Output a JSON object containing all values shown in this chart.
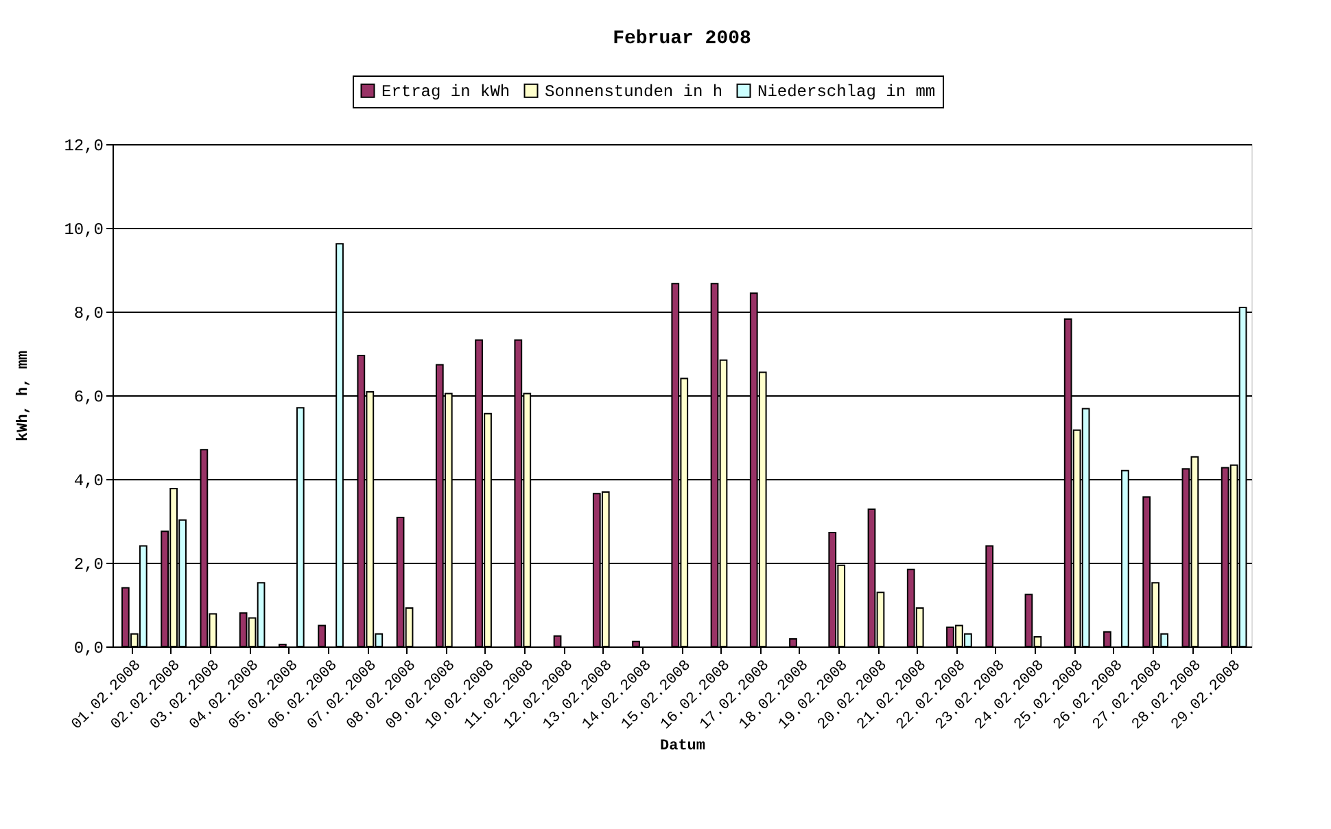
{
  "chart_data": {
    "type": "bar",
    "title": "Februar 2008",
    "xlabel": "Datum",
    "ylabel": "kWh, h, mm",
    "categories": [
      "01.02.2008",
      "02.02.2008",
      "03.02.2008",
      "04.02.2008",
      "05.02.2008",
      "06.02.2008",
      "07.02.2008",
      "08.02.2008",
      "09.02.2008",
      "10.02.2008",
      "11.02.2008",
      "12.02.2008",
      "13.02.2008",
      "14.02.2008",
      "15.02.2008",
      "16.02.2008",
      "17.02.2008",
      "18.02.2008",
      "19.02.2008",
      "20.02.2008",
      "21.02.2008",
      "22.02.2008",
      "23.02.2008",
      "24.02.2008",
      "25.02.2008",
      "26.02.2008",
      "27.02.2008",
      "28.02.2008",
      "29.02.2008"
    ],
    "series": [
      {
        "name": "Ertrag in kWh",
        "color": "#993366",
        "values": [
          1.4,
          2.75,
          4.7,
          0.8,
          0.05,
          0.5,
          6.95,
          3.08,
          6.73,
          7.32,
          7.32,
          0.25,
          3.65,
          0.12,
          8.67,
          8.67,
          8.44,
          0.18,
          2.72,
          3.28,
          1.84,
          0.46,
          2.4,
          1.24,
          7.82,
          0.35,
          3.57,
          4.24,
          4.27
        ]
      },
      {
        "name": "Sonnenstunden in h",
        "color": "#ffffcc",
        "values": [
          0.3,
          3.77,
          0.78,
          0.68,
          null,
          null,
          6.08,
          0.92,
          6.04,
          5.56,
          6.04,
          null,
          3.69,
          null,
          6.4,
          6.84,
          6.55,
          null,
          1.94,
          1.29,
          0.92,
          0.5,
          null,
          0.23,
          5.17,
          null,
          1.52,
          4.53,
          4.33
        ]
      },
      {
        "name": "Niederschlag in mm",
        "color": "#ccffff",
        "values": [
          2.4,
          3.02,
          null,
          1.52,
          5.7,
          9.62,
          0.3,
          null,
          null,
          null,
          null,
          null,
          null,
          null,
          null,
          null,
          null,
          null,
          null,
          null,
          null,
          0.3,
          null,
          null,
          5.68,
          4.2,
          0.3,
          null,
          8.1
        ]
      }
    ],
    "ylim": [
      0,
      12
    ],
    "yticks": [
      {
        "value": 0,
        "label": "0,0"
      },
      {
        "value": 2,
        "label": "2,0"
      },
      {
        "value": 4,
        "label": "4,0"
      },
      {
        "value": 6,
        "label": "6,0"
      },
      {
        "value": 8,
        "label": "8,0"
      },
      {
        "value": 10,
        "label": "10,0"
      },
      {
        "value": 12,
        "label": "12,0"
      }
    ],
    "grid": "y",
    "legend": "top"
  }
}
